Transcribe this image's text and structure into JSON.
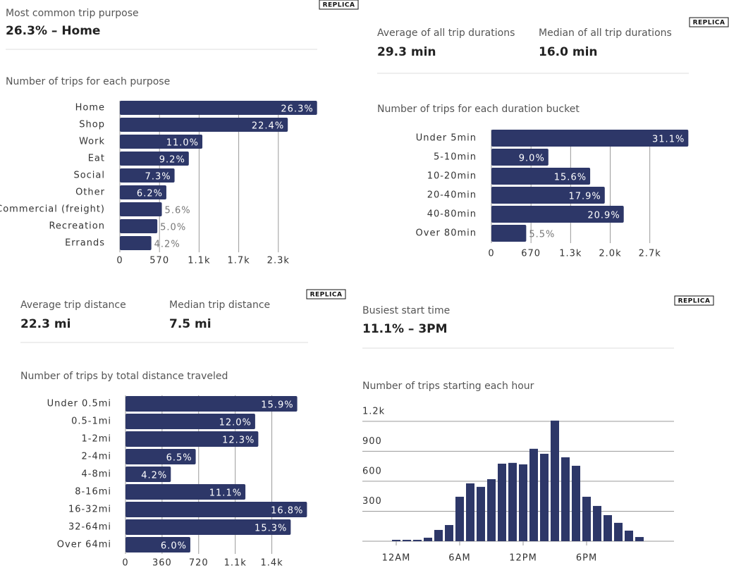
{
  "chart_data": [
    {
      "type": "hbar",
      "badge": "REPLICA",
      "stats": [
        {
          "label": "Most common trip purpose",
          "value": "26.3% – Home"
        }
      ],
      "title": "Number of trips for each purpose",
      "categories": [
        "Home",
        "Shop",
        "Work",
        "Eat",
        "Social",
        "Other",
        "Commercial (freight)",
        "Recreation",
        "Errands"
      ],
      "values": [
        2837,
        2416,
        1187,
        992,
        787,
        669,
        604,
        539,
        453
      ],
      "percent_labels": [
        "26.3%",
        "22.4%",
        "11.0%",
        "9.2%",
        "7.3%",
        "6.2%",
        "5.6%",
        "5.0%",
        "4.2%"
      ],
      "color": "#2d3768",
      "xlim": [
        0,
        2840
      ],
      "xticks": [
        0,
        570,
        {
          "value": 1140,
          "label": "1.1k"
        },
        {
          "value": 1710,
          "label": "1.7k"
        },
        {
          "value": 2280,
          "label": "2.3k"
        }
      ],
      "grid": true
    },
    {
      "type": "hbar",
      "badge": "REPLICA",
      "stats": [
        {
          "label": "Average of all trip durations",
          "value": "29.3 min"
        },
        {
          "label": "Median of all trip durations",
          "value": "16.0 min"
        }
      ],
      "title": "Number of trips for each duration bucket",
      "categories": [
        "Under 5min",
        "5-10min",
        "10-20min",
        "20-40min",
        "40-80min",
        "Over 80min"
      ],
      "values": [
        3332,
        964,
        1671,
        1918,
        2239,
        589
      ],
      "percent_labels": [
        "31.1%",
        "9.0%",
        "15.6%",
        "17.9%",
        "20.9%",
        "5.5%"
      ],
      "color": "#2d3768",
      "xlim": [
        0,
        3340
      ],
      "xticks": [
        0,
        670,
        {
          "value": 1340,
          "label": "1.3k"
        },
        {
          "value": 2010,
          "label": "2.0k"
        },
        {
          "value": 2680,
          "label": "2.7k"
        }
      ],
      "grid": true
    },
    {
      "type": "hbar",
      "badge": "REPLICA",
      "stats": [
        {
          "label": "Average trip distance",
          "value": "22.3 mi"
        },
        {
          "label": "Median trip distance",
          "value": "7.5 mi"
        }
      ],
      "title": "Number of trips by total distance traveled",
      "categories": [
        "Under 0.5mi",
        "0.5-1mi",
        "1-2mi",
        "2-4mi",
        "4-8mi",
        "8-16mi",
        "16-32mi",
        "32-64mi",
        "Over 64mi"
      ],
      "values": [
        1690,
        1276,
        1307,
        691,
        446,
        1180,
        1786,
        1626,
        638
      ],
      "percent_labels": [
        "15.9%",
        "12.0%",
        "12.3%",
        "6.5%",
        "4.2%",
        "11.1%",
        "16.8%",
        "15.3%",
        "6.0%"
      ],
      "color": "#2d3768",
      "xlim": [
        0,
        1790
      ],
      "xticks": [
        0,
        360,
        720,
        {
          "value": 1080,
          "label": "1.1k"
        },
        {
          "value": 1440,
          "label": "1.4k"
        }
      ],
      "grid": true
    },
    {
      "type": "bar",
      "badge": "REPLICA",
      "stats": [
        {
          "label": "Busiest start time",
          "value": "11.1% – 3PM"
        }
      ],
      "title": "Number of trips starting each hour",
      "categories": [
        "12AM",
        null,
        null,
        null,
        null,
        null,
        "6AM",
        null,
        null,
        null,
        null,
        null,
        "12PM",
        null,
        null,
        null,
        null,
        null,
        "6PM",
        null,
        null,
        null,
        null,
        null
      ],
      "values": [
        14,
        14,
        14,
        35,
        113,
        162,
        445,
        579,
        544,
        621,
        776,
        784,
        769,
        925,
        875,
        1207,
        840,
        755,
        445,
        353,
        261,
        184,
        106,
        42
      ],
      "color": "#2d3768",
      "ylim": [
        0,
        1220
      ],
      "yticks": [
        300,
        600,
        900,
        {
          "value": 1200,
          "label": "1.2k"
        }
      ],
      "grid": true
    }
  ]
}
